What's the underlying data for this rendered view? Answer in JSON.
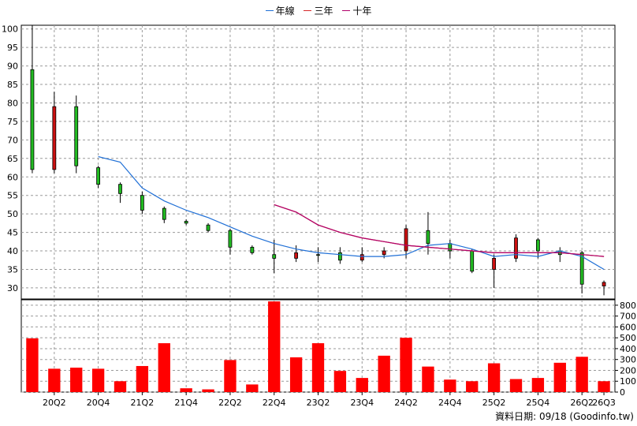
{
  "legend": [
    {
      "label": "年線",
      "color": "#1f6fd6"
    },
    {
      "label": "三年",
      "color": "#d62728"
    },
    {
      "label": "十年",
      "color": "#b0006a"
    }
  ],
  "footer": "資料日期: 09/18  (Goodinfo.tw)",
  "chart_data": [
    {
      "type": "candlestick",
      "title": "",
      "ylim": [
        27,
        101
      ],
      "yticks": [
        30,
        35,
        40,
        45,
        50,
        55,
        60,
        65,
        70,
        75,
        80,
        85,
        90,
        95,
        100
      ],
      "grid": true,
      "x_ticks": [
        "20Q2",
        "20Q4",
        "21Q2",
        "21Q4",
        "22Q2",
        "22Q4",
        "23Q2",
        "23Q4",
        "24Q2",
        "24Q4",
        "25Q2",
        "25Q4",
        "26Q2",
        "26Q3"
      ],
      "tick_slot_index": [
        1,
        3,
        5,
        7,
        9,
        11,
        13,
        15,
        17,
        19,
        21,
        23,
        25,
        26
      ],
      "candles": [
        {
          "o": 62,
          "h": 101,
          "l": 61,
          "c": 89
        },
        {
          "o": 79,
          "h": 83,
          "l": 61,
          "c": 62
        },
        {
          "o": 63,
          "h": 82,
          "l": 61,
          "c": 79
        },
        {
          "o": 58,
          "h": 63,
          "l": 57,
          "c": 62.5
        },
        {
          "o": 55.5,
          "h": 58.5,
          "l": 53,
          "c": 58
        },
        {
          "o": 51,
          "h": 56,
          "l": 50,
          "c": 55
        },
        {
          "o": 48.5,
          "h": 52,
          "l": 47.5,
          "c": 51.5
        },
        {
          "o": 47.5,
          "h": 48.5,
          "l": 47,
          "c": 48
        },
        {
          "o": 45.5,
          "h": 47.5,
          "l": 45,
          "c": 47
        },
        {
          "o": 41,
          "h": 46,
          "l": 39,
          "c": 45.5
        },
        {
          "o": 39.5,
          "h": 41.5,
          "l": 39,
          "c": 41
        },
        {
          "o": 38,
          "h": 43,
          "l": 34,
          "c": 39
        },
        {
          "o": 39.5,
          "h": 41.5,
          "l": 37,
          "c": 38
        },
        {
          "o": 39,
          "h": 41,
          "l": 37,
          "c": 39
        },
        {
          "o": 37.5,
          "h": 41,
          "l": 36.5,
          "c": 39.5
        },
        {
          "o": 39,
          "h": 41,
          "l": 37,
          "c": 37.5
        },
        {
          "o": 40,
          "h": 41,
          "l": 38,
          "c": 39
        },
        {
          "o": 46,
          "h": 47,
          "l": 38,
          "c": 40
        },
        {
          "o": 42,
          "h": 50.5,
          "l": 39,
          "c": 45.5
        },
        {
          "o": 40,
          "h": 43,
          "l": 38,
          "c": 42
        },
        {
          "o": 34.5,
          "h": 40.5,
          "l": 34,
          "c": 40
        },
        {
          "o": 38,
          "h": 39,
          "l": 30,
          "c": 35
        },
        {
          "o": 43.5,
          "h": 44.5,
          "l": 37,
          "c": 38
        },
        {
          "o": 40,
          "h": 43.5,
          "l": 38,
          "c": 43
        },
        {
          "o": 39,
          "h": 41,
          "l": 37,
          "c": 40
        },
        {
          "o": 31,
          "h": 40,
          "l": 28.5,
          "c": 39.5
        },
        {
          "o": 31.5,
          "h": 32,
          "l": 28,
          "c": 30.5
        }
      ],
      "lines": [
        {
          "name": "年線",
          "color": "#1f6fd6",
          "start_index": 3,
          "values": [
            65.5,
            64,
            57,
            53.5,
            51,
            49,
            46.5,
            44,
            42,
            40.5,
            39.5,
            39,
            38.5,
            38.5,
            39,
            41.5,
            42,
            40.5,
            38.5,
            39,
            38.5,
            40,
            38.5,
            35
          ]
        },
        {
          "name": "三年",
          "color": "#d62728",
          "start_index": 11,
          "values": [
            52.5,
            50.5,
            47,
            45,
            43.5,
            42.5,
            41.5,
            41,
            40.5,
            40,
            39.5,
            39.5,
            39.5,
            39.5,
            39,
            38.5
          ]
        },
        {
          "name": "十年",
          "color": "#b0006a",
          "start_index": 11,
          "values": [
            52.5,
            50.5,
            47,
            45,
            43.5,
            42.5,
            41.5,
            41,
            40.5,
            40,
            39.5,
            39.5,
            39.5,
            39.5,
            39,
            38.5
          ]
        }
      ]
    },
    {
      "type": "bar",
      "title": "",
      "ylim": [
        0,
        850
      ],
      "yticks": [
        0,
        100,
        200,
        300,
        400,
        500,
        600,
        700,
        800
      ],
      "grid": true,
      "color": "#ff0000",
      "values": [
        495,
        215,
        225,
        215,
        100,
        240,
        450,
        35,
        25,
        295,
        70,
        835,
        320,
        450,
        195,
        130,
        335,
        500,
        235,
        115,
        100,
        265,
        120,
        130,
        270,
        325,
        100
      ]
    }
  ]
}
